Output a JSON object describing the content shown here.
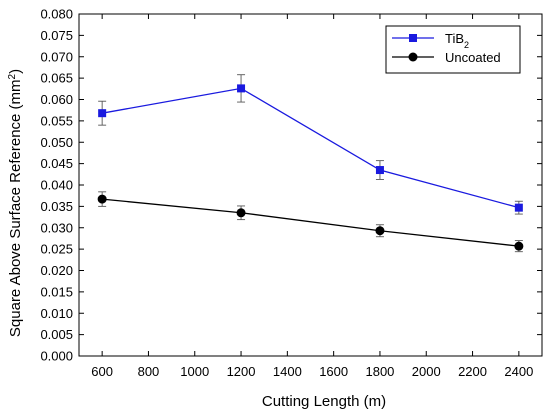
{
  "chart_data": {
    "type": "line",
    "title": "",
    "xlabel": "Cutting Length (m)",
    "ylabel": "Square Above Surface Reference (mm",
    "ylabel_superscript": "2",
    "ylabel_suffix": ")",
    "xlim": [
      500,
      2500
    ],
    "ylim": [
      0.0,
      0.08
    ],
    "x_ticks": [
      600,
      800,
      1000,
      1200,
      1400,
      1600,
      1800,
      2000,
      2200,
      2400
    ],
    "y_ticks": [
      "0.000",
      "0.005",
      "0.010",
      "0.015",
      "0.020",
      "0.025",
      "0.030",
      "0.035",
      "0.040",
      "0.045",
      "0.050",
      "0.055",
      "0.060",
      "0.065",
      "0.070",
      "0.075",
      "0.080"
    ],
    "grid": false,
    "legend_position": "top-right",
    "series": [
      {
        "name": "TiB",
        "name_subscript": "2",
        "color": "#1a1adf",
        "marker": "square",
        "x": [
          600,
          1200,
          1800,
          2400
        ],
        "y": [
          0.0568,
          0.0626,
          0.0435,
          0.0347
        ],
        "err": [
          0.0028,
          0.0032,
          0.0022,
          0.0015
        ]
      },
      {
        "name": "Uncoated",
        "color": "#000000",
        "marker": "circle",
        "x": [
          600,
          1200,
          1800,
          2400
        ],
        "y": [
          0.0367,
          0.0335,
          0.0293,
          0.0257
        ],
        "err": [
          0.0017,
          0.0016,
          0.0014,
          0.0013
        ]
      }
    ]
  }
}
